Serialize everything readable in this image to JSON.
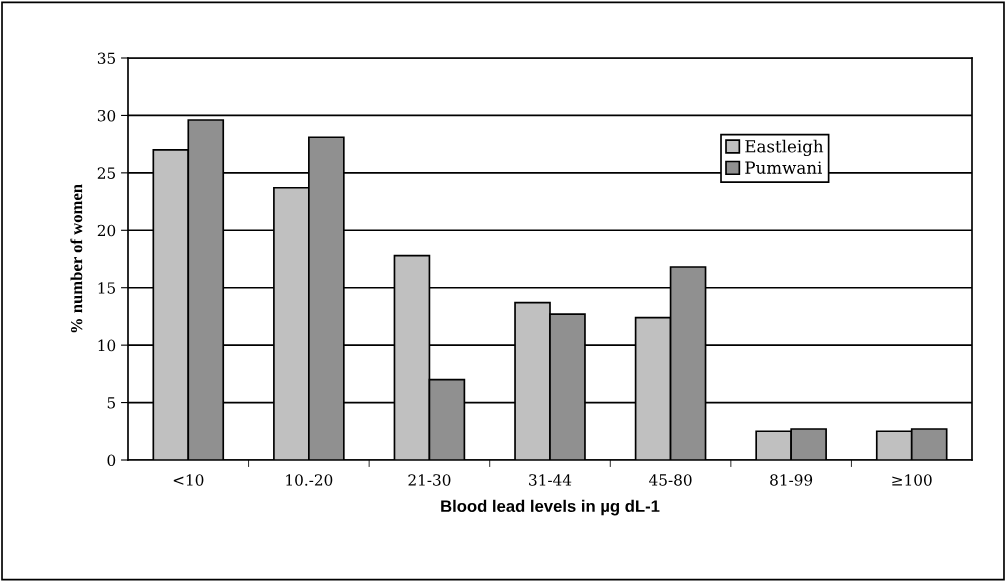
{
  "chart_data": {
    "type": "bar",
    "xlabel": "Blood lead levels in µg dL-1",
    "ylabel": "% number of women",
    "categories": [
      "<10",
      "10.-20",
      "21-30",
      "31-44",
      "45-80",
      "81-99",
      "≥100"
    ],
    "series": [
      {
        "name": "Eastleigh",
        "color": "#c0c0c0",
        "values": [
          27.0,
          23.7,
          17.8,
          13.7,
          12.4,
          2.5,
          2.5
        ]
      },
      {
        "name": "Pumwani",
        "color": "#909090",
        "values": [
          29.6,
          28.1,
          7.0,
          12.7,
          16.8,
          2.7,
          2.7
        ]
      }
    ],
    "ylim": [
      0,
      35
    ],
    "yticks": [
      0,
      5,
      10,
      15,
      20,
      25,
      30,
      35
    ],
    "grid": "y",
    "legend": "top right"
  }
}
